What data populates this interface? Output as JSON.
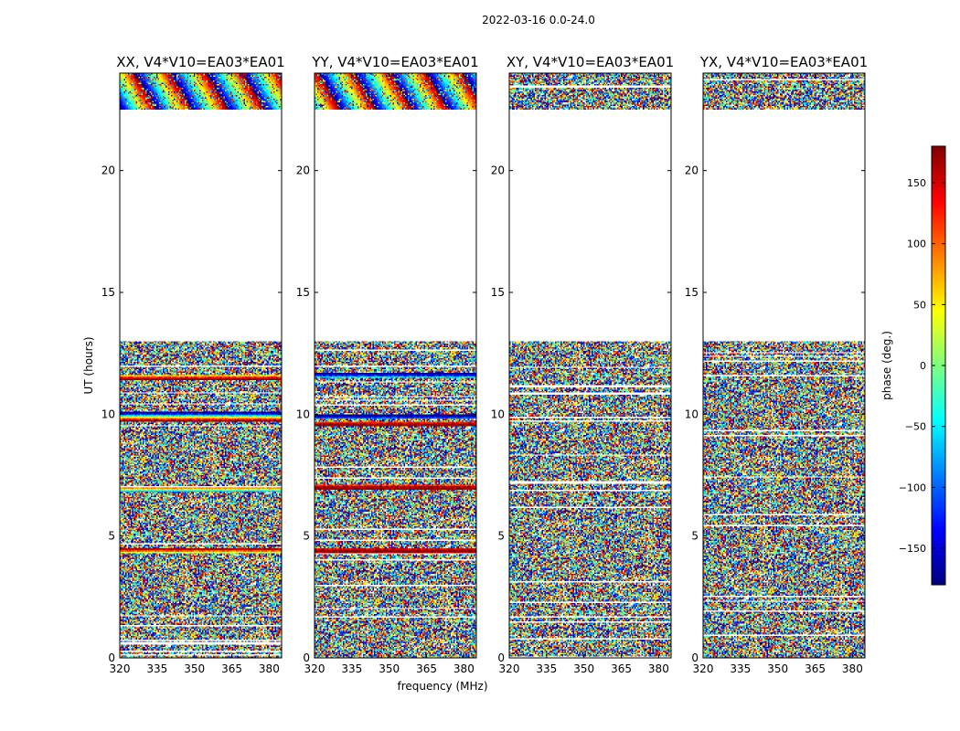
{
  "figure": {
    "suptitle": "2022-03-16 0.0-24.0",
    "xlabel": "frequency (MHz)",
    "ylabel": "UT (hours)",
    "colorbar_label": "phase (deg.)",
    "colorbar_ticks": [
      150,
      100,
      50,
      0,
      -50,
      -100,
      -150
    ],
    "colorbar_range": [
      -180,
      180
    ],
    "colormap": [
      "#00007f",
      "#0000ff",
      "#007fff",
      "#00ffff",
      "#7fff7f",
      "#ffff00",
      "#ff7f00",
      "#ff0000",
      "#7f0000"
    ]
  },
  "chart_data": [
    {
      "type": "heatmap",
      "title": "XX, V4*V10=EA03*EA01",
      "xlim": [
        320,
        385
      ],
      "ylim": [
        0,
        24
      ],
      "xticks": [
        320,
        335,
        350,
        365,
        380
      ],
      "yticks": [
        0,
        5,
        10,
        15,
        20
      ],
      "xlabel": "",
      "ylabel": "UT (hours)",
      "zlabel": "phase (deg.)",
      "data_coverage_hours": [
        [
          0.0,
          13.0
        ],
        [
          22.5,
          24.0
        ]
      ],
      "coherent_bands_hours": [
        11.5,
        10.0,
        9.8,
        6.9,
        4.4
      ],
      "structure": "fringes (coherent phase wraps) during 22.5-24 h"
    },
    {
      "type": "heatmap",
      "title": "YY, V4*V10=EA03*EA01",
      "xlim": [
        320,
        385
      ],
      "ylim": [
        0,
        24
      ],
      "xticks": [
        320,
        335,
        350,
        365,
        380
      ],
      "yticks": [
        0,
        5,
        10,
        15,
        20
      ],
      "xlabel": "frequency (MHz)",
      "ylabel": "",
      "zlabel": "phase (deg.)",
      "data_coverage_hours": [
        [
          0.0,
          13.0
        ],
        [
          22.5,
          24.0
        ]
      ],
      "coherent_bands_hours": [
        11.6,
        9.9,
        9.6,
        7.0,
        4.4
      ],
      "structure": "fringes (coherent phase wraps) during 22.5-24 h"
    },
    {
      "type": "heatmap",
      "title": "XY, V4*V10=EA03*EA01",
      "xlim": [
        320,
        385
      ],
      "ylim": [
        0,
        24
      ],
      "xticks": [
        320,
        335,
        350,
        365,
        380
      ],
      "yticks": [
        0,
        5,
        10,
        15,
        20
      ],
      "xlabel": "",
      "ylabel": "",
      "zlabel": "phase (deg.)",
      "data_coverage_hours": [
        [
          0.0,
          13.0
        ],
        [
          22.5,
          24.0
        ]
      ],
      "coherent_bands_hours": [],
      "structure": "noise-like phase"
    },
    {
      "type": "heatmap",
      "title": "YX, V4*V10=EA03*EA01",
      "xlim": [
        320,
        385
      ],
      "ylim": [
        0,
        24
      ],
      "xticks": [
        320,
        335,
        350,
        365,
        380
      ],
      "yticks": [
        0,
        5,
        10,
        15,
        20
      ],
      "xlabel": "",
      "ylabel": "",
      "zlabel": "phase (deg.)",
      "data_coverage_hours": [
        [
          0.0,
          13.0
        ],
        [
          22.5,
          24.0
        ]
      ],
      "coherent_bands_hours": [],
      "structure": "noise-like phase"
    }
  ]
}
